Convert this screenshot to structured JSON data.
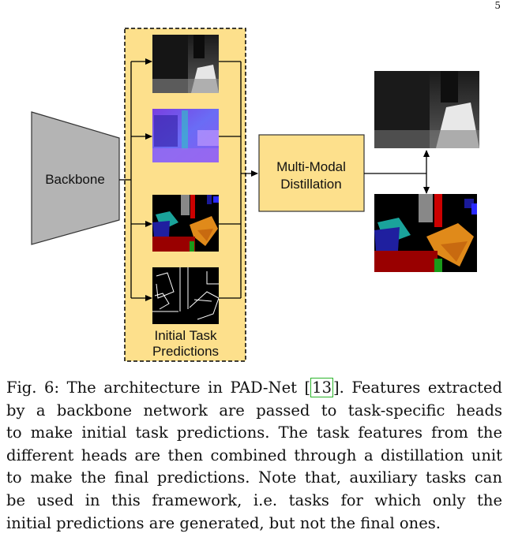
{
  "page_number": "5",
  "figure": {
    "backbone_label": "Backbone",
    "distillation_label_line1": "Multi-Modal",
    "distillation_label_line2": "Distillation",
    "initial_label_line1": "Initial Task",
    "initial_label_line2": "Predictions",
    "colors": {
      "initial_box_fill": "#fde08c",
      "distill_box_fill": "#fde08c",
      "backbone_fill": "#b4b4b4"
    }
  },
  "caption": {
    "line1_pre": "Fig. 6: The architecture in PAD-Net [",
    "line1_ref": "13",
    "line1_post": "]. Features extracted",
    "line2": "by a backbone network are passed to task-specific heads",
    "line3": "to make initial task predictions. The task features from the",
    "line4": "different heads are then combined through a distillation unit",
    "line5": "to make the final predictions. Note that, auxiliary tasks can",
    "line6": "be used in this framework, i.e. tasks for which only the",
    "line7": "initial predictions are generated, but not the final ones."
  }
}
